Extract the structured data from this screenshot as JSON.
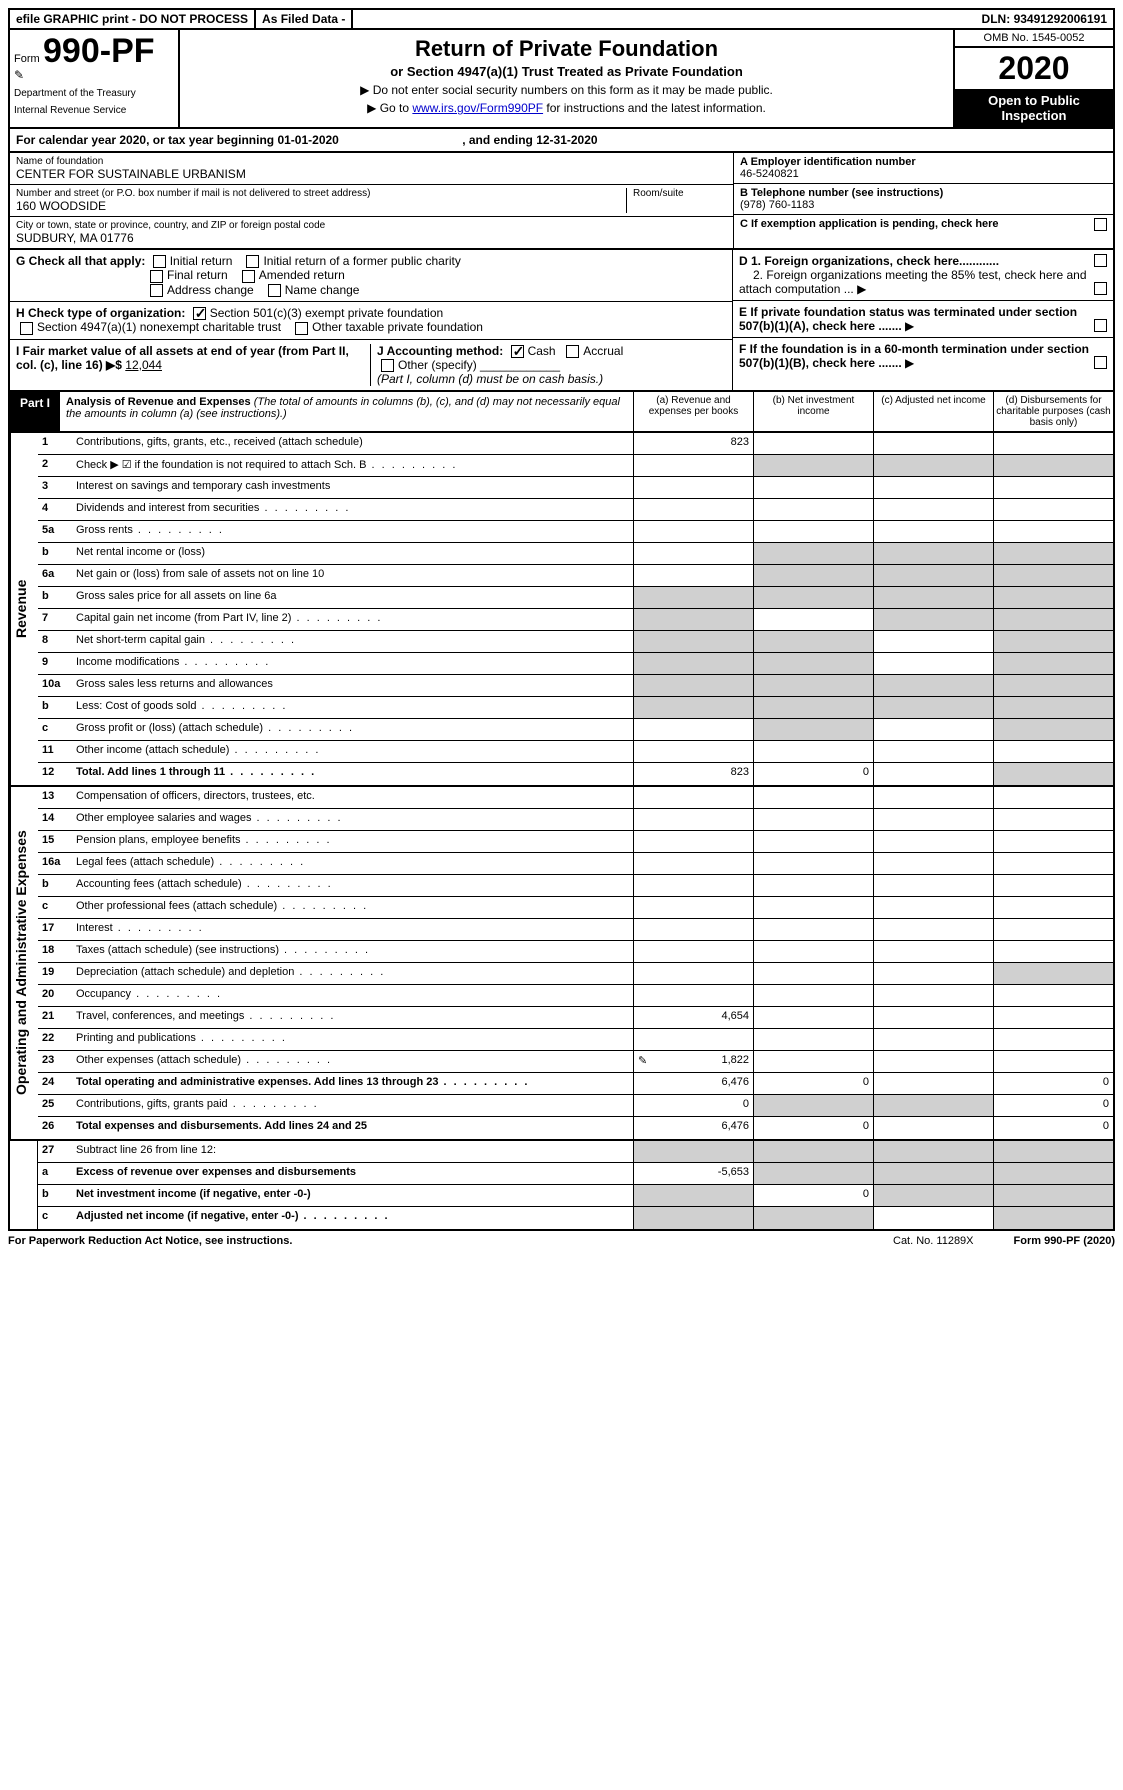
{
  "topbar": {
    "efile": "efile GRAPHIC print - DO NOT PROCESS",
    "asfiled": "As Filed Data -",
    "dln_label": "DLN:",
    "dln": "93491292006191"
  },
  "header": {
    "form_prefix": "Form",
    "form_no": "990-PF",
    "dept1": "Department of the Treasury",
    "dept2": "Internal Revenue Service",
    "title": "Return of Private Foundation",
    "subtitle": "or Section 4947(a)(1) Trust Treated as Private Foundation",
    "inst1": "▶ Do not enter social security numbers on this form as it may be made public.",
    "inst2_pre": "▶ Go to ",
    "inst2_link": "www.irs.gov/Form990PF",
    "inst2_post": " for instructions and the latest information.",
    "omb": "OMB No. 1545-0052",
    "year": "2020",
    "inspection": "Open to Public Inspection"
  },
  "cal": {
    "text_a": "For calendar year 2020, or tax year beginning ",
    "begin": "01-01-2020",
    "text_b": ", and ending ",
    "end": "12-31-2020"
  },
  "entity": {
    "name_label": "Name of foundation",
    "name": "CENTER FOR SUSTAINABLE URBANISM",
    "street_label": "Number and street (or P.O. box number if mail is not delivered to street address)",
    "room_label": "Room/suite",
    "street": "160 WOODSIDE",
    "city_label": "City or town, state or province, country, and ZIP or foreign postal code",
    "city": "SUDBURY, MA  01776",
    "a_label": "A Employer identification number",
    "a_val": "46-5240821",
    "b_label": "B Telephone number (see instructions)",
    "b_val": "(978) 760-1183",
    "c_label": "C If exemption application is pending, check here"
  },
  "g": {
    "label": "G Check all that apply:",
    "opts": [
      "Initial return",
      "Initial return of a former public charity",
      "Final return",
      "Amended return",
      "Address change",
      "Name change"
    ]
  },
  "h": {
    "label": "H Check type of organization:",
    "opt1": "Section 501(c)(3) exempt private foundation",
    "opt2": "Section 4947(a)(1) nonexempt charitable trust",
    "opt3": "Other taxable private foundation"
  },
  "i": {
    "label": "I Fair market value of all assets at end of year (from Part II, col. (c), line 16) ▶$",
    "val": "12,044"
  },
  "j": {
    "label": "J Accounting method:",
    "cash": "Cash",
    "accrual": "Accrual",
    "other": "Other (specify)",
    "note": "(Part I, column (d) must be on cash basis.)"
  },
  "right_checks": {
    "d1": "D 1. Foreign organizations, check here............",
    "d2": "2. Foreign organizations meeting the 85% test, check here and attach computation ...",
    "e": "E  If private foundation status was terminated under section 507(b)(1)(A), check here .......",
    "f": "F  If the foundation is in a 60-month termination under section 507(b)(1)(B), check here ......."
  },
  "part1": {
    "label": "Part I",
    "title": "Analysis of Revenue and Expenses",
    "title_note": " (The total of amounts in columns (b), (c), and (d) may not necessarily equal the amounts in column (a) (see instructions).)",
    "col_a": "(a) Revenue and expenses per books",
    "col_b": "(b) Net investment income",
    "col_c": "(c) Adjusted net income",
    "col_d": "(d) Disbursements for charitable purposes (cash basis only)"
  },
  "sections": {
    "revenue": "Revenue",
    "opex": "Operating and Administrative Expenses"
  },
  "rows": [
    {
      "n": "1",
      "d": "Contributions, gifts, grants, etc., received (attach schedule)",
      "a": "823"
    },
    {
      "n": "2",
      "d": "Check ▶ ☑ if the foundation is not required to attach Sch. B",
      "dots": true,
      "shade_bcd": true
    },
    {
      "n": "3",
      "d": "Interest on savings and temporary cash investments"
    },
    {
      "n": "4",
      "d": "Dividends and interest from securities",
      "dots": true
    },
    {
      "n": "5a",
      "d": "Gross rents",
      "dots": true
    },
    {
      "n": "b",
      "d": "Net rental income or (loss)",
      "shade_bcd": true
    },
    {
      "n": "6a",
      "d": "Net gain or (loss) from sale of assets not on line 10",
      "shade_bcd": true
    },
    {
      "n": "b",
      "d": "Gross sales price for all assets on line 6a",
      "shade_all": true
    },
    {
      "n": "7",
      "d": "Capital gain net income (from Part IV, line 2)",
      "dots": true,
      "shade_acd": true
    },
    {
      "n": "8",
      "d": "Net short-term capital gain",
      "dots": true,
      "shade_abd": true
    },
    {
      "n": "9",
      "d": "Income modifications",
      "dots": true,
      "shade_abd": true
    },
    {
      "n": "10a",
      "d": "Gross sales less returns and allowances",
      "shade_all": true
    },
    {
      "n": "b",
      "d": "Less: Cost of goods sold",
      "dots": true,
      "shade_all": true
    },
    {
      "n": "c",
      "d": "Gross profit or (loss) (attach schedule)",
      "dots": true,
      "shade_bd": true
    },
    {
      "n": "11",
      "d": "Other income (attach schedule)",
      "dots": true
    },
    {
      "n": "12",
      "d": "Total. Add lines 1 through 11",
      "dots": true,
      "bold": true,
      "a": "823",
      "b": "0",
      "shade_d": true
    }
  ],
  "rows2": [
    {
      "n": "13",
      "d": "Compensation of officers, directors, trustees, etc."
    },
    {
      "n": "14",
      "d": "Other employee salaries and wages",
      "dots": true
    },
    {
      "n": "15",
      "d": "Pension plans, employee benefits",
      "dots": true
    },
    {
      "n": "16a",
      "d": "Legal fees (attach schedule)",
      "dots": true
    },
    {
      "n": "b",
      "d": "Accounting fees (attach schedule)",
      "dots": true
    },
    {
      "n": "c",
      "d": "Other professional fees (attach schedule)",
      "dots": true
    },
    {
      "n": "17",
      "d": "Interest",
      "dots": true
    },
    {
      "n": "18",
      "d": "Taxes (attach schedule) (see instructions)",
      "dots": true
    },
    {
      "n": "19",
      "d": "Depreciation (attach schedule) and depletion",
      "dots": true,
      "shade_d": true
    },
    {
      "n": "20",
      "d": "Occupancy",
      "dots": true
    },
    {
      "n": "21",
      "d": "Travel, conferences, and meetings",
      "dots": true,
      "a": "4,654"
    },
    {
      "n": "22",
      "d": "Printing and publications",
      "dots": true
    },
    {
      "n": "23",
      "d": "Other expenses (attach schedule)",
      "dots": true,
      "a": "1,822",
      "icon": true
    },
    {
      "n": "24",
      "d": "Total operating and administrative expenses. Add lines 13 through 23",
      "dots": true,
      "bold": true,
      "a": "6,476",
      "b": "0",
      "dv": "0"
    },
    {
      "n": "25",
      "d": "Contributions, gifts, grants paid",
      "dots": true,
      "a": "0",
      "shade_bc": true,
      "dv": "0"
    },
    {
      "n": "26",
      "d": "Total expenses and disbursements. Add lines 24 and 25",
      "bold": true,
      "a": "6,476",
      "b": "0",
      "dv": "0"
    }
  ],
  "rows3": [
    {
      "n": "27",
      "d": "Subtract line 26 from line 12:",
      "shade_all": true
    },
    {
      "n": "a",
      "d": "Excess of revenue over expenses and disbursements",
      "bold": true,
      "a": "-5,653",
      "shade_bcd": true
    },
    {
      "n": "b",
      "d": "Net investment income (if negative, enter -0-)",
      "bold": true,
      "b": "0",
      "shade_acd": true
    },
    {
      "n": "c",
      "d": "Adjusted net income (if negative, enter -0-)",
      "bold": true,
      "dots": true,
      "shade_abd": true
    }
  ],
  "footer": {
    "left": "For Paperwork Reduction Act Notice, see instructions.",
    "mid": "Cat. No. 11289X",
    "right": "Form 990-PF (2020)"
  },
  "colors": {
    "black": "#000000",
    "shade": "#d0d0d0",
    "link": "#0000cc"
  }
}
